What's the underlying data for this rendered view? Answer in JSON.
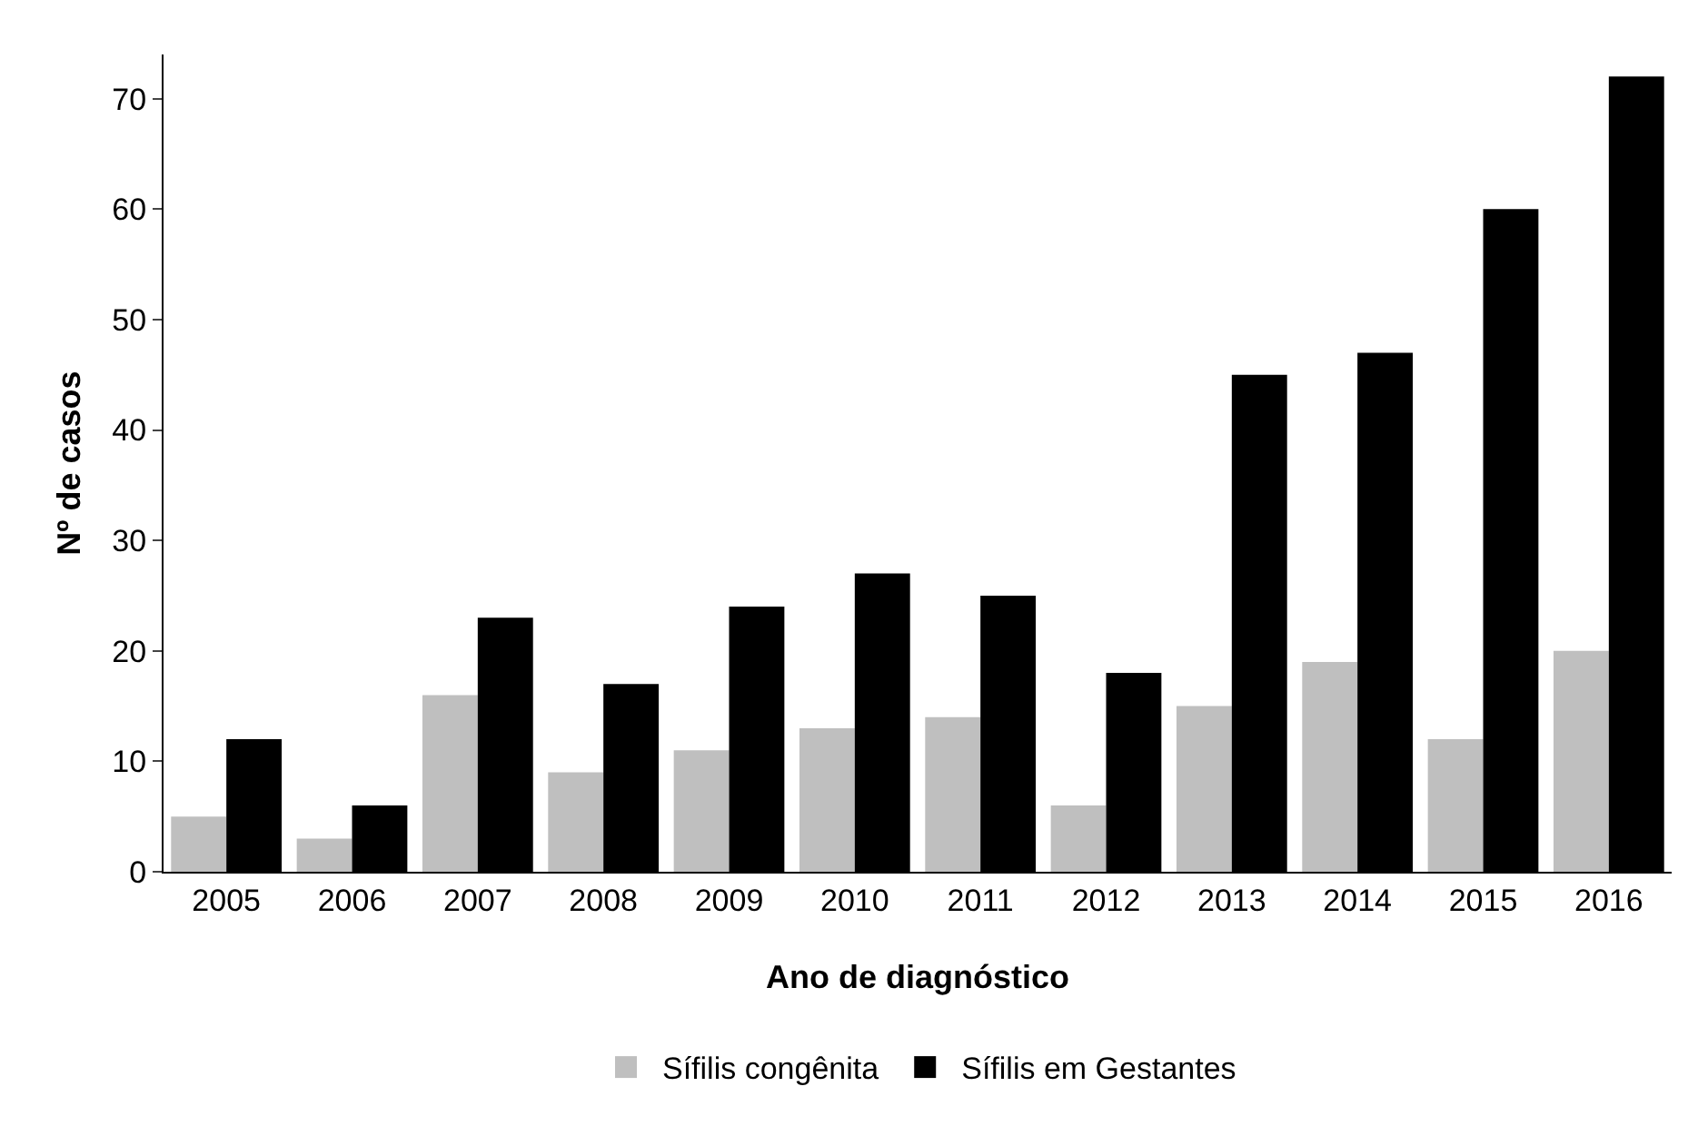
{
  "chart_data": {
    "type": "bar",
    "xlabel": "Ano de diagnóstico",
    "ylabel": "Nº de casos",
    "categories": [
      "2005",
      "2006",
      "2007",
      "2008",
      "2009",
      "2010",
      "2011",
      "2012",
      "2013",
      "2014",
      "2015",
      "2016"
    ],
    "series": [
      {
        "name": "Sífilis congênita",
        "color": "#bfbfbf",
        "values": [
          5,
          3,
          16,
          9,
          11,
          13,
          14,
          6,
          15,
          19,
          12,
          20
        ]
      },
      {
        "name": "Sífilis em Gestantes",
        "color": "#000000",
        "values": [
          12,
          6,
          23,
          17,
          24,
          27,
          25,
          18,
          45,
          47,
          60,
          72
        ]
      }
    ],
    "ylim": [
      0,
      74
    ],
    "yticks": [
      0,
      10,
      20,
      30,
      40,
      50,
      60,
      70
    ],
    "grid": false,
    "legend": "bottom"
  }
}
